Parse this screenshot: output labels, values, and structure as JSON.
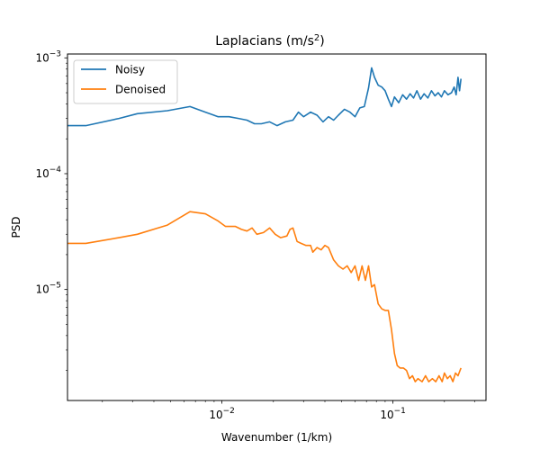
{
  "chart_data": {
    "type": "line",
    "title": "Laplacians (m/s",
    "title_sup": "2",
    "title_end": ")",
    "xlabel": "Wavenumber (1/km)",
    "ylabel": "PSD",
    "xscale": "log",
    "yscale": "log",
    "xlim": [
      0.00125,
      0.35
    ],
    "ylim": [
      1.1e-06,
      0.00108
    ],
    "grid": false,
    "legend_position": "top-left",
    "x_ticks": [
      {
        "value": 0.01,
        "base": "10",
        "exp": "−2"
      },
      {
        "value": 0.1,
        "base": "10",
        "exp": "−1"
      }
    ],
    "y_ticks": [
      {
        "value": 1e-05,
        "base": "10",
        "exp": "−5"
      },
      {
        "value": 0.0001,
        "base": "10",
        "exp": "−4"
      },
      {
        "value": 0.001,
        "base": "10",
        "exp": "−3"
      }
    ],
    "series": [
      {
        "name": "Noisy",
        "color": "#1f77b4",
        "points": [
          [
            0.00125,
            0.00026
          ],
          [
            0.0016,
            0.00026
          ],
          [
            0.0025,
            0.0003
          ],
          [
            0.0032,
            0.00033
          ],
          [
            0.0048,
            0.00035
          ],
          [
            0.0065,
            0.00038
          ],
          [
            0.008,
            0.00034
          ],
          [
            0.0095,
            0.00031
          ],
          [
            0.011,
            0.00031
          ],
          [
            0.0125,
            0.0003
          ],
          [
            0.014,
            0.00029
          ],
          [
            0.0155,
            0.00027
          ],
          [
            0.017,
            0.00027
          ],
          [
            0.019,
            0.00028
          ],
          [
            0.021,
            0.00026
          ],
          [
            0.0235,
            0.00028
          ],
          [
            0.026,
            0.00029
          ],
          [
            0.028,
            0.00034
          ],
          [
            0.03,
            0.00031
          ],
          [
            0.033,
            0.00034
          ],
          [
            0.036,
            0.00032
          ],
          [
            0.039,
            0.00028
          ],
          [
            0.042,
            0.00031
          ],
          [
            0.045,
            0.00029
          ],
          [
            0.048,
            0.00032
          ],
          [
            0.052,
            0.00036
          ],
          [
            0.056,
            0.00034
          ],
          [
            0.06,
            0.00031
          ],
          [
            0.064,
            0.00037
          ],
          [
            0.068,
            0.00038
          ],
          [
            0.072,
            0.00055
          ],
          [
            0.075,
            0.00082
          ],
          [
            0.078,
            0.00068
          ],
          [
            0.082,
            0.00058
          ],
          [
            0.086,
            0.00056
          ],
          [
            0.09,
            0.00052
          ],
          [
            0.094,
            0.00044
          ],
          [
            0.098,
            0.00038
          ],
          [
            0.102,
            0.00046
          ],
          [
            0.108,
            0.00041
          ],
          [
            0.114,
            0.00048
          ],
          [
            0.12,
            0.00044
          ],
          [
            0.126,
            0.00049
          ],
          [
            0.132,
            0.00045
          ],
          [
            0.138,
            0.00052
          ],
          [
            0.145,
            0.00044
          ],
          [
            0.152,
            0.00049
          ],
          [
            0.16,
            0.00045
          ],
          [
            0.168,
            0.00052
          ],
          [
            0.176,
            0.00047
          ],
          [
            0.184,
            0.0005
          ],
          [
            0.192,
            0.00046
          ],
          [
            0.2,
            0.00052
          ],
          [
            0.21,
            0.00048
          ],
          [
            0.22,
            0.0005
          ],
          [
            0.228,
            0.00056
          ],
          [
            0.234,
            0.00048
          ],
          [
            0.24,
            0.00068
          ],
          [
            0.245,
            0.00052
          ],
          [
            0.25,
            0.00066
          ]
        ]
      },
      {
        "name": "Denoised",
        "color": "#ff7f0e",
        "points": [
          [
            0.00125,
            2.5e-05
          ],
          [
            0.0016,
            2.5e-05
          ],
          [
            0.0025,
            2.8e-05
          ],
          [
            0.0032,
            3e-05
          ],
          [
            0.0048,
            3.6e-05
          ],
          [
            0.0065,
            4.7e-05
          ],
          [
            0.008,
            4.5e-05
          ],
          [
            0.0095,
            3.9e-05
          ],
          [
            0.0105,
            3.5e-05
          ],
          [
            0.012,
            3.5e-05
          ],
          [
            0.013,
            3.3e-05
          ],
          [
            0.014,
            3.2e-05
          ],
          [
            0.015,
            3.4e-05
          ],
          [
            0.016,
            3e-05
          ],
          [
            0.0175,
            3.1e-05
          ],
          [
            0.019,
            3.4e-05
          ],
          [
            0.0205,
            3e-05
          ],
          [
            0.022,
            2.8e-05
          ],
          [
            0.024,
            2.9e-05
          ],
          [
            0.025,
            3.3e-05
          ],
          [
            0.026,
            3.4e-05
          ],
          [
            0.0275,
            2.6e-05
          ],
          [
            0.029,
            2.5e-05
          ],
          [
            0.031,
            2.4e-05
          ],
          [
            0.033,
            2.4e-05
          ],
          [
            0.034,
            2.1e-05
          ],
          [
            0.036,
            2.3e-05
          ],
          [
            0.038,
            2.2e-05
          ],
          [
            0.04,
            2.4e-05
          ],
          [
            0.042,
            2.3e-05
          ],
          [
            0.045,
            1.8e-05
          ],
          [
            0.048,
            1.6e-05
          ],
          [
            0.051,
            1.5e-05
          ],
          [
            0.054,
            1.6e-05
          ],
          [
            0.057,
            1.4e-05
          ],
          [
            0.06,
            1.6e-05
          ],
          [
            0.063,
            1.2e-05
          ],
          [
            0.066,
            1.6e-05
          ],
          [
            0.069,
            1.2e-05
          ],
          [
            0.072,
            1.6e-05
          ],
          [
            0.075,
            1.05e-05
          ],
          [
            0.078,
            1.1e-05
          ],
          [
            0.082,
            7.5e-06
          ],
          [
            0.086,
            6.8e-06
          ],
          [
            0.09,
            6.6e-06
          ],
          [
            0.094,
            6.6e-06
          ],
          [
            0.098,
            4.5e-06
          ],
          [
            0.102,
            2.8e-06
          ],
          [
            0.106,
            2.2e-06
          ],
          [
            0.11,
            2.1e-06
          ],
          [
            0.115,
            2.1e-06
          ],
          [
            0.12,
            2e-06
          ],
          [
            0.125,
            1.7e-06
          ],
          [
            0.13,
            1.8e-06
          ],
          [
            0.135,
            1.6e-06
          ],
          [
            0.14,
            1.7e-06
          ],
          [
            0.148,
            1.6e-06
          ],
          [
            0.155,
            1.8e-06
          ],
          [
            0.162,
            1.6e-06
          ],
          [
            0.17,
            1.7e-06
          ],
          [
            0.178,
            1.6e-06
          ],
          [
            0.186,
            1.8e-06
          ],
          [
            0.194,
            1.6e-06
          ],
          [
            0.2,
            1.9e-06
          ],
          [
            0.208,
            1.7e-06
          ],
          [
            0.216,
            1.8e-06
          ],
          [
            0.224,
            1.6e-06
          ],
          [
            0.232,
            1.9e-06
          ],
          [
            0.24,
            1.8e-06
          ],
          [
            0.25,
            2.1e-06
          ]
        ]
      }
    ]
  }
}
